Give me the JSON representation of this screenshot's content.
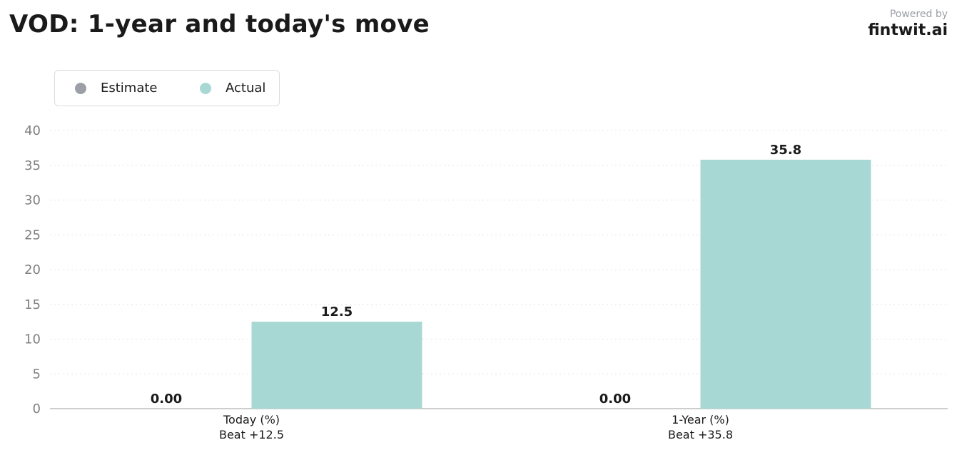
{
  "title": "VOD: 1-year and today's move",
  "brand": {
    "powered_by": "Powered by",
    "name": "fintwit.ai"
  },
  "colors": {
    "estimate": "#9ca0a6",
    "actual": "#a8d8d4"
  },
  "chart_data": {
    "type": "bar",
    "title": "VOD: 1-year and today's move",
    "categories": [
      "Today (%)",
      "1-Year (%)"
    ],
    "category_sublabels": [
      "Beat +12.5",
      "Beat +35.8"
    ],
    "series": [
      {
        "name": "Estimate",
        "values": [
          0,
          0
        ],
        "labels": [
          "0.00",
          "0.00"
        ]
      },
      {
        "name": "Actual",
        "values": [
          12.5,
          35.8
        ],
        "labels": [
          "12.5",
          "35.8"
        ]
      }
    ],
    "ylim": [
      0,
      40
    ],
    "yticks": [
      0,
      5,
      10,
      15,
      20,
      25,
      30,
      35,
      40
    ],
    "grid": true,
    "legend": "top-left"
  }
}
